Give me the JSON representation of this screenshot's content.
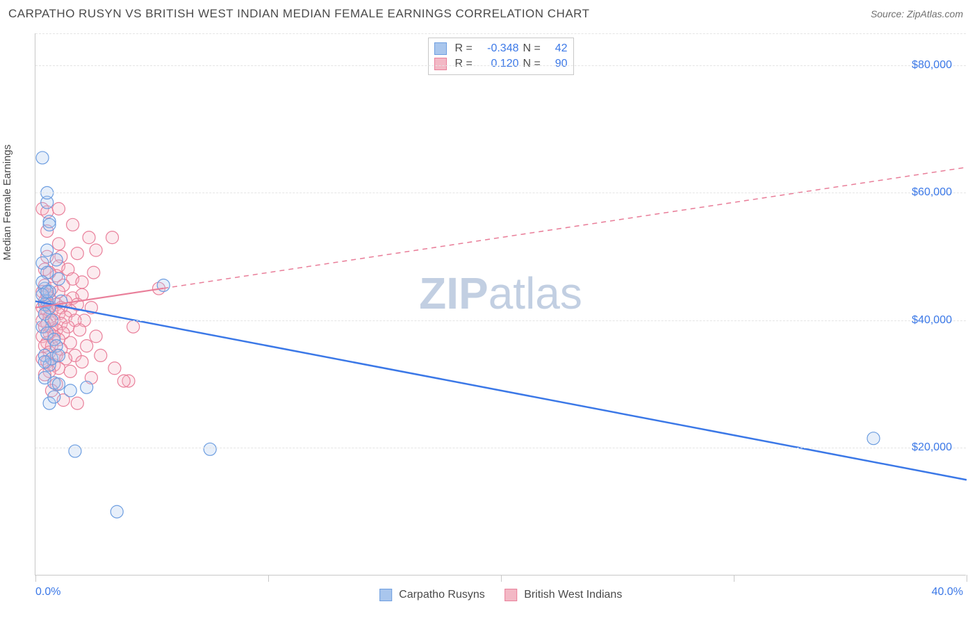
{
  "header": {
    "title": "CARPATHO RUSYN VS BRITISH WEST INDIAN MEDIAN FEMALE EARNINGS CORRELATION CHART",
    "source_label": "Source:",
    "source_value": "ZipAtlas.com"
  },
  "watermark": {
    "zip": "ZIP",
    "atlas": "atlas"
  },
  "chart": {
    "type": "scatter",
    "ylabel": "Median Female Earnings",
    "background_color": "#ffffff",
    "grid_color": "#e4e4e4",
    "axis_color": "#c8c8c8",
    "xlim": [
      0,
      40
    ],
    "ylim": [
      0,
      85000
    ],
    "yticks": [
      {
        "value": 20000,
        "label": "$20,000"
      },
      {
        "value": 40000,
        "label": "$40,000"
      },
      {
        "value": 60000,
        "label": "$60,000"
      },
      {
        "value": 80000,
        "label": "$80,000"
      }
    ],
    "y_gridlines": [
      20000,
      40000,
      60000,
      80000,
      85000
    ],
    "xtick_positions": [
      0,
      10,
      20,
      30,
      40
    ],
    "xtick_labels": [
      {
        "value": 0,
        "label": "0.0%"
      },
      {
        "value": 40,
        "label": "40.0%"
      }
    ],
    "ytick_label_color": "#3b78e7",
    "xtick_label_color": "#3b78e7",
    "marker_radius": 9,
    "marker_stroke_width": 1.2,
    "marker_fill_opacity": 0.28,
    "series": [
      {
        "name": "Carpatho Rusyns",
        "color_fill": "#a9c6ed",
        "color_stroke": "#6c9de0",
        "r_value": "-0.348",
        "n_value": "42",
        "trend": {
          "x1": 0,
          "y1": 43000,
          "x2": 40,
          "y2": 15000,
          "solid_until_x": 40,
          "color": "#3b78e7",
          "width": 2.5
        },
        "points": [
          [
            0.3,
            65500
          ],
          [
            0.5,
            58500
          ],
          [
            0.5,
            60000
          ],
          [
            0.6,
            55500
          ],
          [
            0.6,
            55000
          ],
          [
            0.3,
            49000
          ],
          [
            0.5,
            47500
          ],
          [
            0.4,
            45000
          ],
          [
            0.6,
            44500
          ],
          [
            0.3,
            46000
          ],
          [
            0.5,
            43000
          ],
          [
            0.4,
            42500
          ],
          [
            0.6,
            42000
          ],
          [
            0.3,
            44000
          ],
          [
            0.5,
            44500
          ],
          [
            0.4,
            41000
          ],
          [
            0.7,
            40000
          ],
          [
            0.3,
            39000
          ],
          [
            0.5,
            38000
          ],
          [
            1.0,
            46500
          ],
          [
            1.1,
            43000
          ],
          [
            0.8,
            37000
          ],
          [
            0.9,
            36000
          ],
          [
            0.4,
            34500
          ],
          [
            0.6,
            33000
          ],
          [
            0.7,
            34000
          ],
          [
            1.0,
            34500
          ],
          [
            0.4,
            31000
          ],
          [
            0.8,
            30200
          ],
          [
            1.5,
            29000
          ],
          [
            1.0,
            30000
          ],
          [
            0.6,
            27000
          ],
          [
            2.2,
            29500
          ],
          [
            0.4,
            33500
          ],
          [
            1.7,
            19500
          ],
          [
            0.8,
            28000
          ],
          [
            5.5,
            45500
          ],
          [
            3.5,
            10000
          ],
          [
            7.5,
            19800
          ],
          [
            36.0,
            21500
          ],
          [
            0.5,
            51000
          ],
          [
            0.9,
            49500
          ]
        ]
      },
      {
        "name": "British West Indians",
        "color_fill": "#f3b8c5",
        "color_stroke": "#e97f9a",
        "r_value": "0.120",
        "n_value": "90",
        "trend": {
          "x1": 0,
          "y1": 42000,
          "x2": 40,
          "y2": 64000,
          "solid_until_x": 5.5,
          "color": "#e97f9a",
          "width": 2.2
        },
        "points": [
          [
            0.3,
            57500
          ],
          [
            0.5,
            57000
          ],
          [
            1.0,
            57500
          ],
          [
            1.6,
            55000
          ],
          [
            2.3,
            53000
          ],
          [
            2.6,
            51000
          ],
          [
            3.3,
            53000
          ],
          [
            1.8,
            50500
          ],
          [
            0.5,
            50000
          ],
          [
            1.1,
            50000
          ],
          [
            1.0,
            48500
          ],
          [
            0.4,
            48000
          ],
          [
            1.4,
            48000
          ],
          [
            2.5,
            47500
          ],
          [
            0.9,
            47000
          ],
          [
            0.6,
            47500
          ],
          [
            1.6,
            46500
          ],
          [
            2.0,
            46000
          ],
          [
            0.4,
            45500
          ],
          [
            1.2,
            45500
          ],
          [
            0.7,
            45000
          ],
          [
            0.3,
            44500
          ],
          [
            1.0,
            44500
          ],
          [
            0.5,
            44000
          ],
          [
            2.0,
            44000
          ],
          [
            1.6,
            43500
          ],
          [
            0.6,
            43500
          ],
          [
            0.4,
            43000
          ],
          [
            1.3,
            43000
          ],
          [
            0.9,
            42500
          ],
          [
            0.5,
            42500
          ],
          [
            1.8,
            42500
          ],
          [
            0.3,
            42000
          ],
          [
            1.1,
            42000
          ],
          [
            2.4,
            42000
          ],
          [
            0.7,
            41500
          ],
          [
            0.5,
            41500
          ],
          [
            1.5,
            41500
          ],
          [
            0.4,
            41000
          ],
          [
            1.0,
            41000
          ],
          [
            0.6,
            40500
          ],
          [
            1.3,
            40500
          ],
          [
            0.8,
            40000
          ],
          [
            0.3,
            40000
          ],
          [
            2.1,
            40000
          ],
          [
            1.7,
            40000
          ],
          [
            1.1,
            39500
          ],
          [
            0.5,
            39500
          ],
          [
            0.7,
            39000
          ],
          [
            1.4,
            39000
          ],
          [
            0.4,
            39000
          ],
          [
            0.9,
            38500
          ],
          [
            1.9,
            38500
          ],
          [
            0.6,
            38000
          ],
          [
            1.2,
            38000
          ],
          [
            4.2,
            39000
          ],
          [
            0.3,
            37500
          ],
          [
            0.8,
            37500
          ],
          [
            2.6,
            37500
          ],
          [
            1.0,
            37000
          ],
          [
            0.5,
            36500
          ],
          [
            1.5,
            36500
          ],
          [
            0.7,
            36000
          ],
          [
            2.2,
            36000
          ],
          [
            0.4,
            36000
          ],
          [
            1.1,
            35500
          ],
          [
            0.6,
            35000
          ],
          [
            2.8,
            34500
          ],
          [
            0.9,
            34500
          ],
          [
            1.7,
            34500
          ],
          [
            0.3,
            34000
          ],
          [
            1.3,
            34000
          ],
          [
            0.5,
            33500
          ],
          [
            2.0,
            33500
          ],
          [
            0.8,
            33000
          ],
          [
            1.0,
            32500
          ],
          [
            3.4,
            32500
          ],
          [
            0.6,
            32000
          ],
          [
            1.5,
            32000
          ],
          [
            0.4,
            31500
          ],
          [
            2.4,
            31000
          ],
          [
            4.0,
            30500
          ],
          [
            0.9,
            30000
          ],
          [
            3.8,
            30500
          ],
          [
            1.2,
            27500
          ],
          [
            1.8,
            27000
          ],
          [
            5.3,
            45000
          ],
          [
            0.7,
            29000
          ],
          [
            1.0,
            52000
          ],
          [
            0.5,
            54000
          ]
        ]
      }
    ],
    "bottom_legend": [
      {
        "swatch_fill": "#a9c6ed",
        "swatch_stroke": "#6c9de0",
        "label": "Carpatho Rusyns"
      },
      {
        "swatch_fill": "#f3b8c5",
        "swatch_stroke": "#e97f9a",
        "label": "British West Indians"
      }
    ]
  }
}
